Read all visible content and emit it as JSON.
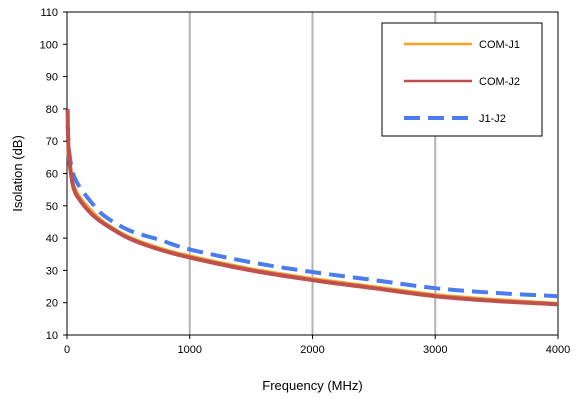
{
  "chart_data": {
    "type": "line",
    "title": "",
    "xlabel": "Frequency (MHz)",
    "ylabel": "Isolation (dB)",
    "xlim": [
      0,
      4000
    ],
    "ylim": [
      10,
      110
    ],
    "x_ticks": [
      0,
      1000,
      2000,
      3000,
      4000
    ],
    "y_ticks": [
      10,
      20,
      30,
      40,
      50,
      60,
      70,
      80,
      90,
      100,
      110
    ],
    "grid": "vertical",
    "legend_position": "top-right",
    "series": [
      {
        "name": "COM-J1",
        "color": "#F5A623",
        "style": "solid",
        "x": [
          5,
          20,
          50,
          100,
          200,
          300,
          500,
          750,
          1000,
          1500,
          2000,
          2500,
          3000,
          3500,
          4000
        ],
        "y": [
          68,
          62,
          57,
          53,
          48.5,
          45,
          40.5,
          37,
          34.5,
          30.5,
          27.5,
          25,
          22.5,
          21,
          19.8
        ]
      },
      {
        "name": "COM-J2",
        "color": "#C0504D",
        "style": "solid",
        "x": [
          5,
          10,
          20,
          50,
          100,
          200,
          300,
          500,
          750,
          1000,
          1500,
          2000,
          2500,
          3000,
          3500,
          4000
        ],
        "y": [
          80,
          70,
          64,
          56,
          52,
          47.5,
          44.5,
          40,
          36.5,
          34,
          30,
          27,
          24.5,
          22,
          20.5,
          19.5
        ]
      },
      {
        "name": "J1-J2",
        "color": "#4A7CF0",
        "style": "dashed",
        "x": [
          5,
          20,
          50,
          100,
          200,
          300,
          500,
          750,
          1000,
          1500,
          2000,
          2500,
          3000,
          3500,
          4000
        ],
        "y": [
          75,
          66,
          60,
          56,
          51,
          47,
          42.5,
          39.5,
          36.5,
          32.5,
          29.5,
          27,
          24.5,
          23,
          22
        ]
      }
    ]
  }
}
